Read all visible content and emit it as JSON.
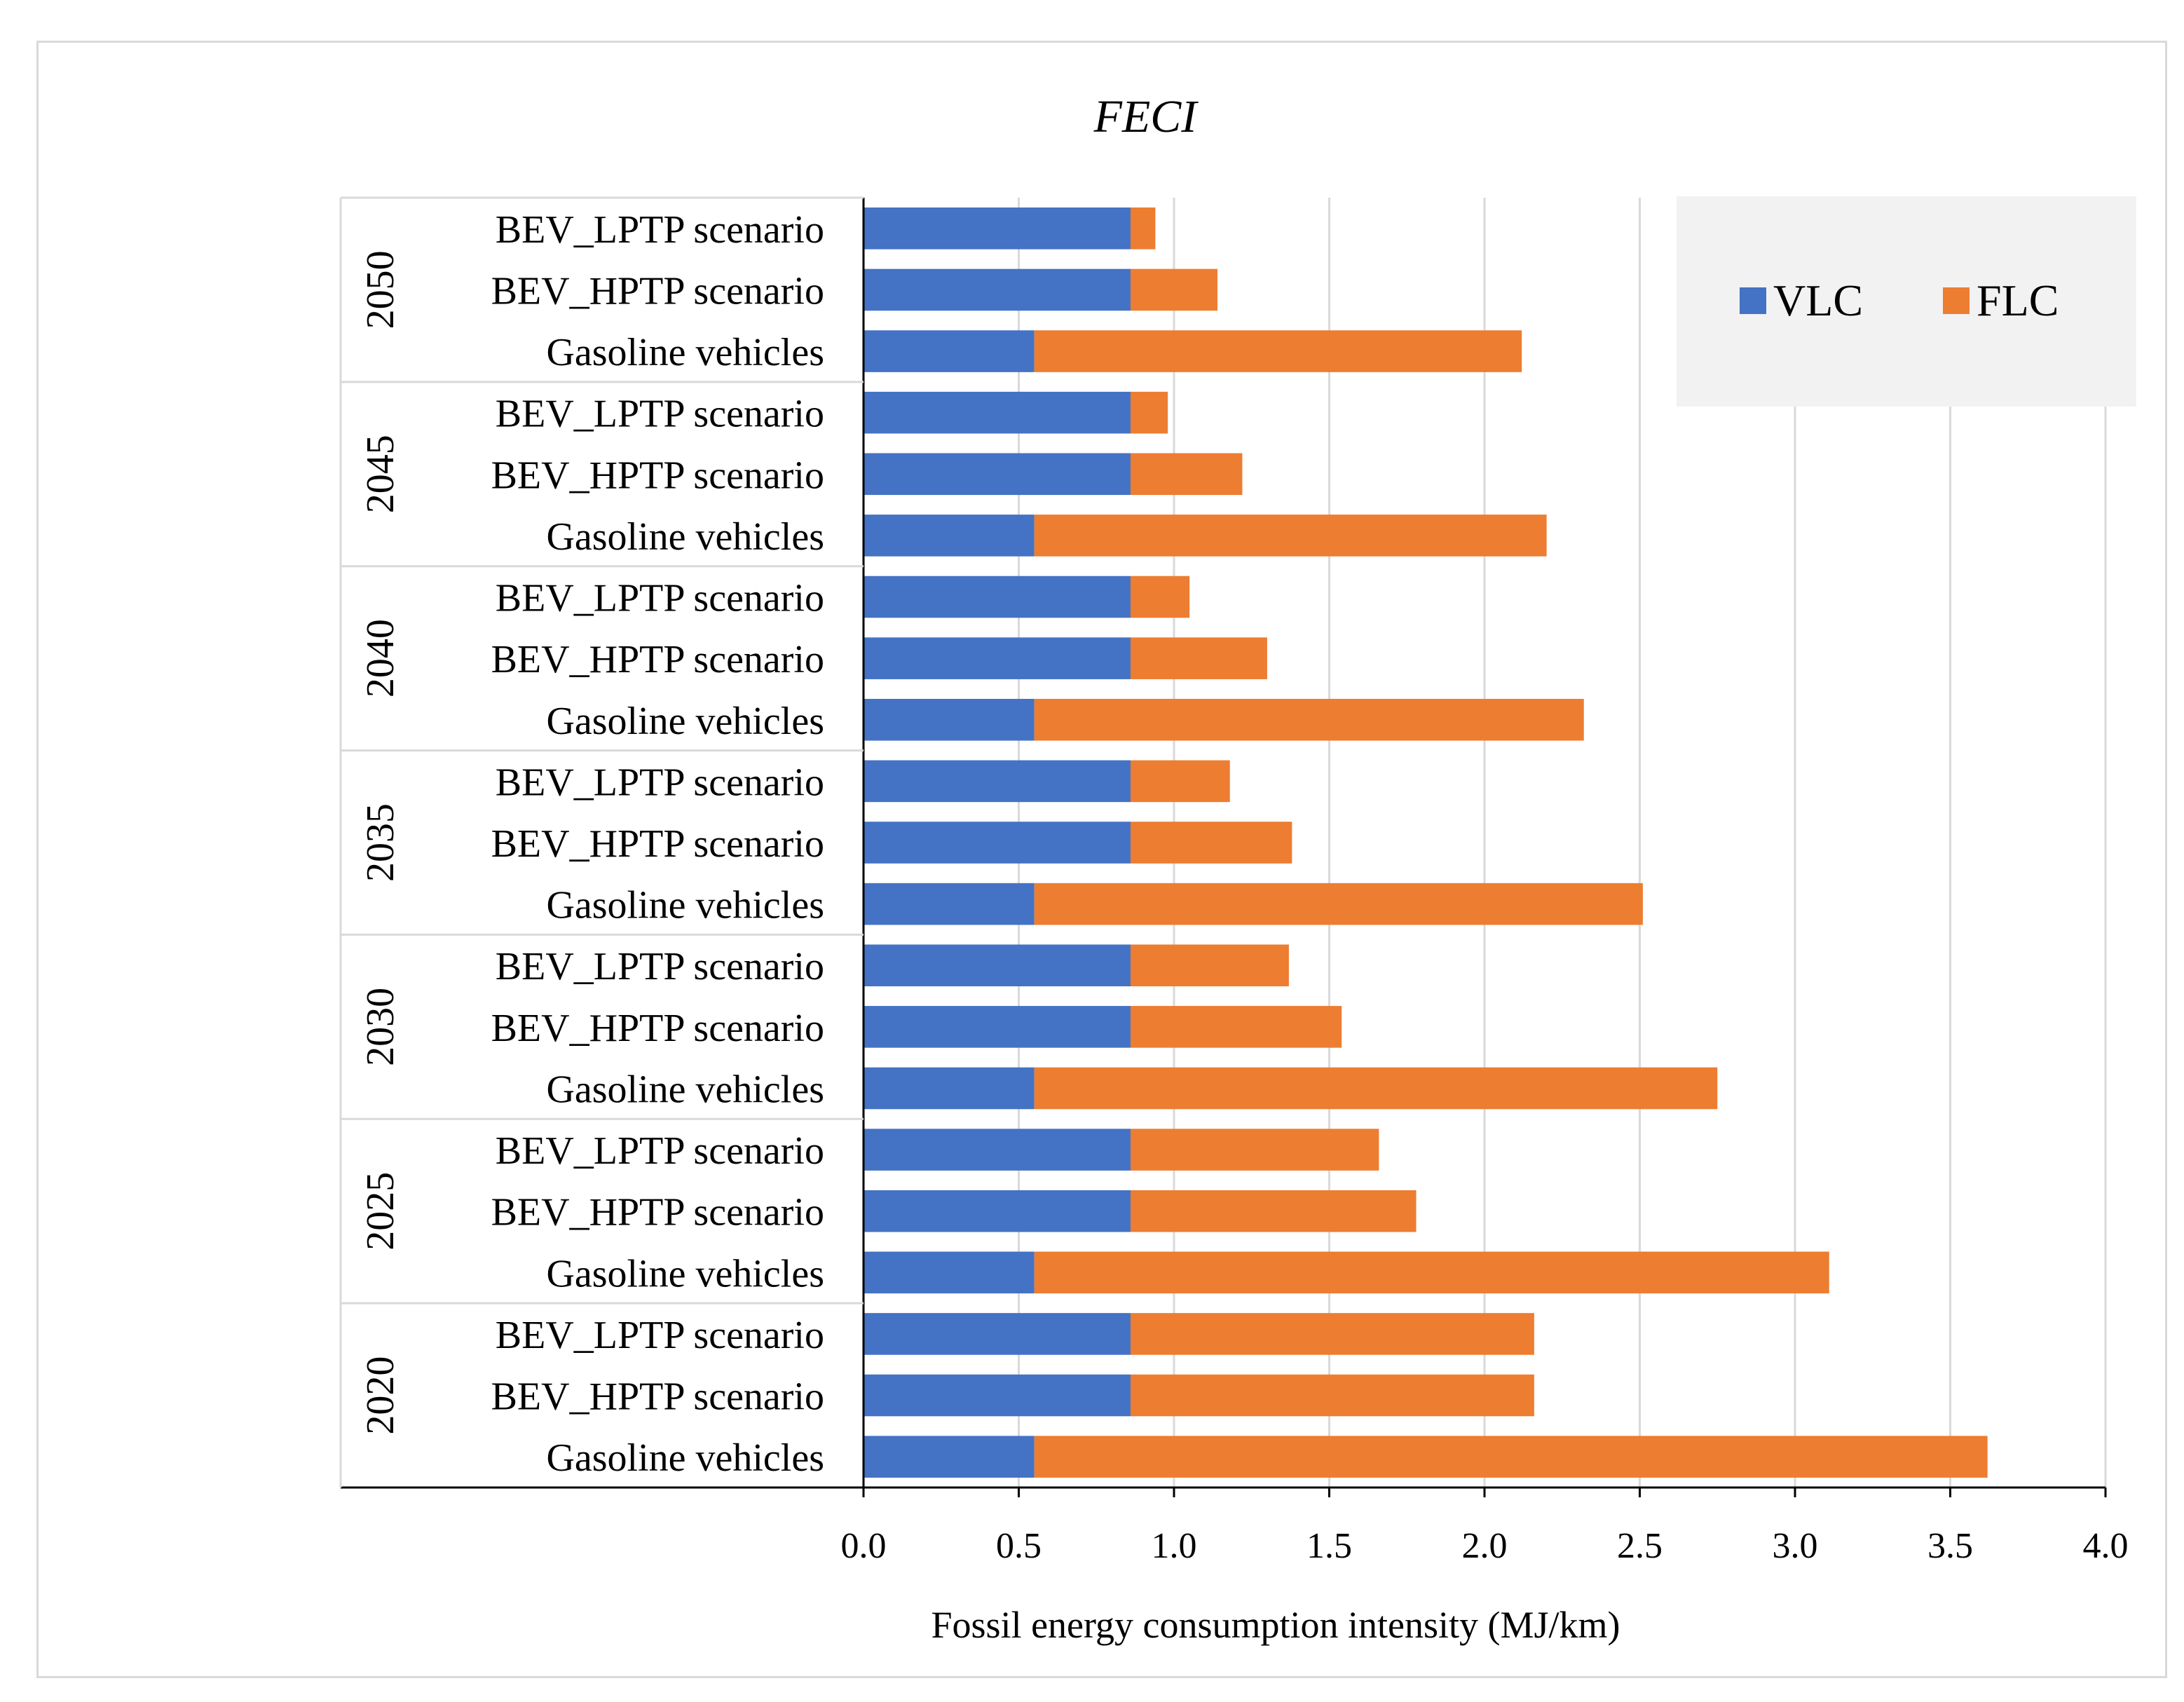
{
  "chart_data": {
    "type": "bar",
    "orientation": "horizontal",
    "stacked": true,
    "title": "FECI",
    "xlabel": "Fossil energy consumption intensity  (MJ/km)",
    "ylabel": "",
    "xlim": [
      0,
      4.0
    ],
    "x_ticks": [
      "0.0",
      "0.5",
      "1.0",
      "1.5",
      "2.0",
      "2.5",
      "3.0",
      "3.5",
      "4.0"
    ],
    "grid": "vertical",
    "legend_position": "top-right",
    "groups": [
      {
        "name": "2050",
        "categories": [
          "BEV_LPTP scenario",
          "BEV_HPTP scenario",
          "Gasoline vehicles"
        ]
      },
      {
        "name": "2045",
        "categories": [
          "BEV_LPTP scenario",
          "BEV_HPTP scenario",
          "Gasoline vehicles"
        ]
      },
      {
        "name": "2040",
        "categories": [
          "BEV_LPTP scenario",
          "BEV_HPTP scenario",
          "Gasoline vehicles"
        ]
      },
      {
        "name": "2035",
        "categories": [
          "BEV_LPTP scenario",
          "BEV_HPTP scenario",
          "Gasoline vehicles"
        ]
      },
      {
        "name": "2030",
        "categories": [
          "BEV_LPTP scenario",
          "BEV_HPTP scenario",
          "Gasoline vehicles"
        ]
      },
      {
        "name": "2025",
        "categories": [
          "BEV_LPTP scenario",
          "BEV_HPTP scenario",
          "Gasoline vehicles"
        ]
      },
      {
        "name": "2020",
        "categories": [
          "BEV_LPTP scenario",
          "BEV_HPTP scenario",
          "Gasoline vehicles"
        ]
      }
    ],
    "series": [
      {
        "name": "VLC",
        "color": "#4472c4",
        "values": [
          0.86,
          0.86,
          0.55,
          0.86,
          0.86,
          0.55,
          0.86,
          0.86,
          0.55,
          0.86,
          0.86,
          0.55,
          0.86,
          0.86,
          0.55,
          0.86,
          0.86,
          0.55,
          0.86,
          0.86,
          0.55
        ]
      },
      {
        "name": "FLC",
        "color": "#ed7d31",
        "values": [
          0.08,
          0.28,
          1.57,
          0.12,
          0.36,
          1.65,
          0.19,
          0.44,
          1.77,
          0.32,
          0.52,
          1.96,
          0.51,
          0.68,
          2.2,
          0.8,
          0.92,
          2.56,
          1.3,
          1.3,
          3.07
        ]
      }
    ]
  }
}
